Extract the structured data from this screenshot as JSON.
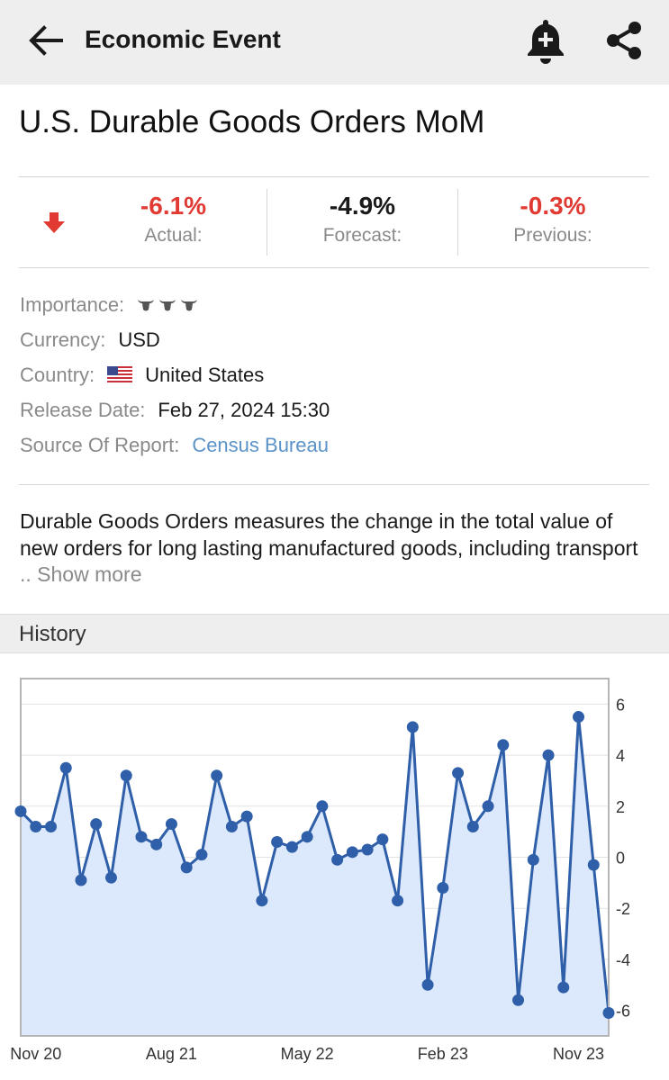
{
  "appbar": {
    "title": "Economic Event",
    "icons": {
      "back": "arrow-left-icon",
      "alert": "bell-plus-icon",
      "share": "share-icon"
    }
  },
  "event": {
    "title": "U.S. Durable Goods Orders MoM"
  },
  "stats": {
    "trend_icon": "down-arrow-icon",
    "actual": {
      "value": "-6.1%",
      "label": "Actual:"
    },
    "forecast": {
      "value": "-4.9%",
      "label": "Forecast:"
    },
    "previous": {
      "value": "-0.3%",
      "label": "Previous:"
    }
  },
  "details": {
    "importance": {
      "label": "Importance:",
      "level": 3,
      "icon": "bull-icon"
    },
    "currency": {
      "label": "Currency:",
      "value": "USD"
    },
    "country": {
      "label": "Country:",
      "value": "United States",
      "icon": "us-flag-icon"
    },
    "release_date": {
      "label": "Release Date:",
      "value": "Feb 27, 2024 15:30"
    },
    "source": {
      "label": "Source Of Report:",
      "value": "Census Bureau"
    }
  },
  "description": {
    "text": "Durable Goods Orders measures the change in the total value of new orders for long lasting manufactured goods, including transport",
    "ellipsis": " .. ",
    "more_label": "Show more"
  },
  "history": {
    "header": "History"
  },
  "colors": {
    "negative": "#e03a32",
    "link": "#5b93c8",
    "series_line": "#2f5fa8",
    "series_fill": "#dce8fb"
  },
  "chart_data": {
    "type": "area",
    "x_tick_labels": [
      "Nov 20",
      "Aug 21",
      "May 22",
      "Feb 23",
      "Nov 23"
    ],
    "x_tick_index": [
      1,
      10,
      19,
      28,
      37
    ],
    "y_ticks": [
      "6",
      "4",
      "2",
      "0",
      "-2",
      "-4",
      "-6"
    ],
    "ylim": [
      -7,
      7
    ],
    "grid": true,
    "y_axis_side": "right",
    "series": [
      {
        "values": [
          1.8,
          1.2,
          1.2,
          3.5,
          -0.9,
          1.3,
          -0.8,
          3.2,
          0.8,
          0.5,
          1.3,
          -0.4,
          0.1,
          3.2,
          1.2,
          1.6,
          -1.7,
          0.6,
          0.4,
          0.8,
          2.0,
          -0.1,
          0.2,
          0.3,
          0.7,
          -1.7,
          5.1,
          -5.0,
          -1.2,
          3.3,
          1.2,
          2.0,
          4.4,
          -5.6,
          -0.1,
          4.0,
          -5.1,
          5.5,
          -0.3,
          -6.1
        ]
      }
    ]
  }
}
